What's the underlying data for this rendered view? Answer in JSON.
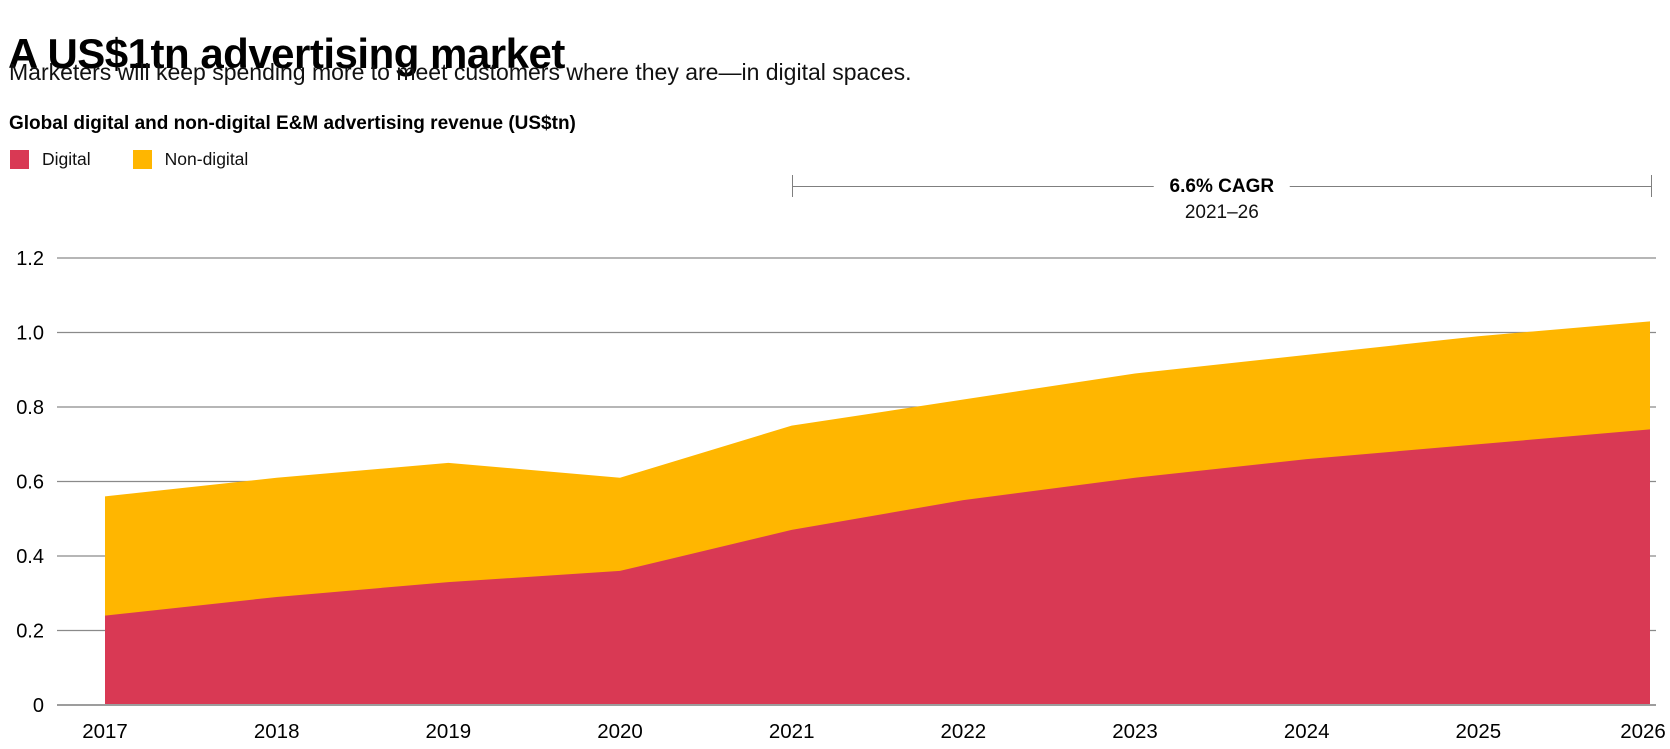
{
  "header": {
    "title": "A US$1tn advertising market",
    "subtitle": "Marketers will keep spending more to meet customers where they are—in digital spaces."
  },
  "annotation": {
    "label": "6.6% CAGR",
    "sublabel": "2021–26",
    "span_start_year": "2021",
    "span_end_year": "2026"
  },
  "chart_data": {
    "type": "area",
    "stacked": true,
    "title": "Global digital and non-digital E&M advertising revenue (US$tn)",
    "categories": [
      "2017",
      "2018",
      "2019",
      "2020",
      "2021",
      "2022",
      "2023",
      "2024",
      "2025",
      "2026"
    ],
    "series": [
      {
        "name": "Digital",
        "color": "#D93954",
        "values": [
          0.24,
          0.29,
          0.33,
          0.36,
          0.47,
          0.55,
          0.61,
          0.66,
          0.7,
          0.74
        ]
      },
      {
        "name": "Non-digital",
        "color": "#FFB600",
        "values": [
          0.32,
          0.32,
          0.32,
          0.25,
          0.28,
          0.27,
          0.28,
          0.28,
          0.29,
          0.29
        ]
      }
    ],
    "totals": [
      0.56,
      0.61,
      0.65,
      0.61,
      0.75,
      0.82,
      0.89,
      0.94,
      0.99,
      1.03
    ],
    "xlabel": "",
    "ylabel": "US$tn",
    "ylim": [
      0,
      1.2
    ],
    "yticks": [
      0,
      0.2,
      0.4,
      0.6,
      0.8,
      1.0,
      1.2
    ],
    "ytick_labels": [
      "0",
      "0.2",
      "0.4",
      "0.6",
      "0.8",
      "1.0",
      "1.2"
    ],
    "grid": true,
    "grid_color": "#8a8a8a",
    "axis_color": "#9d9d9d",
    "legend_position": "top-left"
  }
}
